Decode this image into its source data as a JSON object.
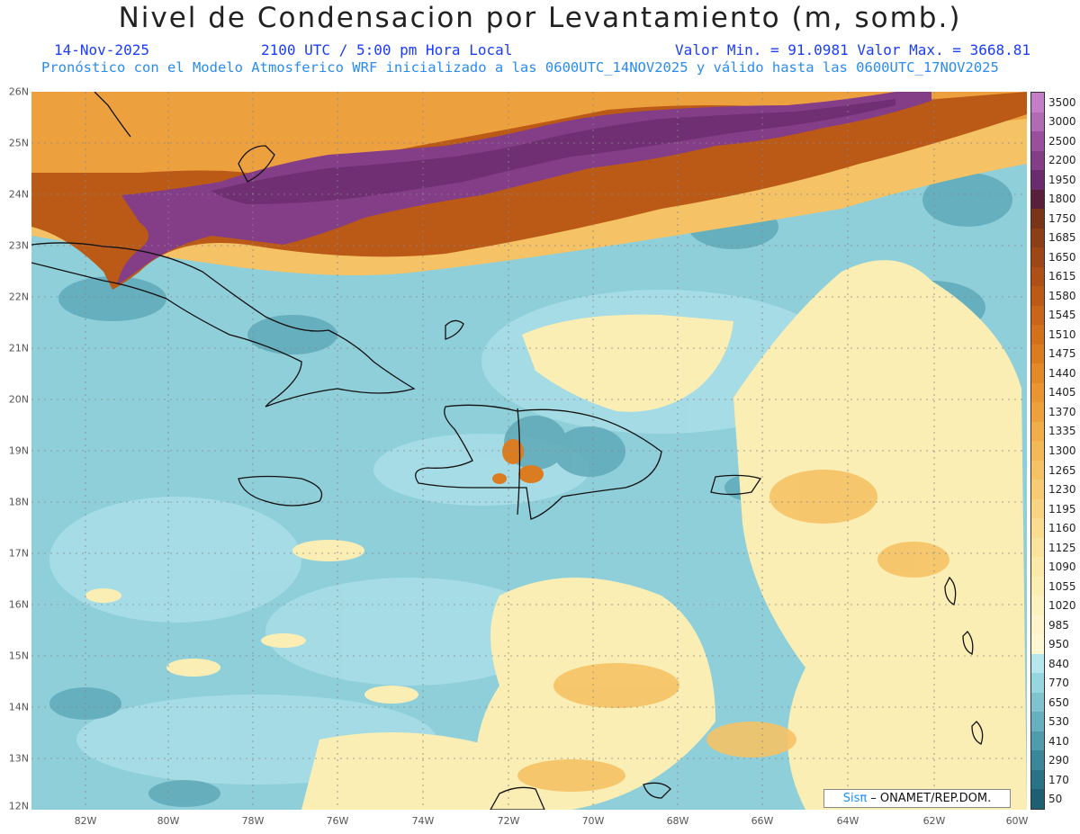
{
  "header": {
    "title": "Nivel de Condensacion por Levantamiento (m, somb.)",
    "date": "14-Nov-2025",
    "time": "2100 UTC / 5:00 pm Hora Local",
    "minmax": "Valor Min. = 91.0981   Valor Max. = 3668.81",
    "description": "Pronóstico con el Modelo Atmosferico WRF inicializado a las 0600UTC_14NOV2025 y válido hasta las  0600UTC_17NOV2025"
  },
  "axes": {
    "lat_labels": [
      "26N",
      "25N",
      "24N",
      "23N",
      "22N",
      "21N",
      "20N",
      "19N",
      "18N",
      "17N",
      "16N",
      "15N",
      "14N",
      "13N",
      "12N"
    ],
    "lon_labels": [
      "82W",
      "80W",
      "78W",
      "76W",
      "74W",
      "72W",
      "70W",
      "68W",
      "66W",
      "64W",
      "62W",
      "60W"
    ]
  },
  "colorbar": {
    "labels": [
      "3500",
      "3000",
      "2500",
      "2200",
      "1950",
      "1800",
      "1750",
      "1685",
      "1650",
      "1615",
      "1580",
      "1545",
      "1510",
      "1475",
      "1440",
      "1405",
      "1370",
      "1335",
      "1300",
      "1265",
      "1230",
      "1195",
      "1160",
      "1125",
      "1090",
      "1055",
      "1020",
      "985",
      "950",
      "840",
      "770",
      "650",
      "530",
      "410",
      "290",
      "170",
      "50"
    ],
    "colors": [
      "#c47ec6",
      "#b06bb3",
      "#9a4f9c",
      "#843d87",
      "#6b2c6e",
      "#5a1f3a",
      "#7a3418",
      "#8c3f17",
      "#9d4716",
      "#ac5016",
      "#bb5a17",
      "#c86519",
      "#d3701c",
      "#dc7c21",
      "#e38928",
      "#e99532",
      "#eda13d",
      "#f0ad49",
      "#f3b857",
      "#f5c265",
      "#f7cb73",
      "#f8d482",
      "#f9dc90",
      "#fae39d",
      "#fbe9a9",
      "#fbeeb4",
      "#fcf2bf",
      "#fdf5c9",
      "#fdf8d2",
      "#b7e7ee",
      "#98d6df",
      "#7fc3cf",
      "#66b0bf",
      "#4f9cad",
      "#3b879a",
      "#2a7386",
      "#1d6072"
    ],
    "grid_color": "#888888"
  },
  "credit": {
    "brand": "Sisπ",
    "org": "– ONAMET/REP.DOM."
  }
}
